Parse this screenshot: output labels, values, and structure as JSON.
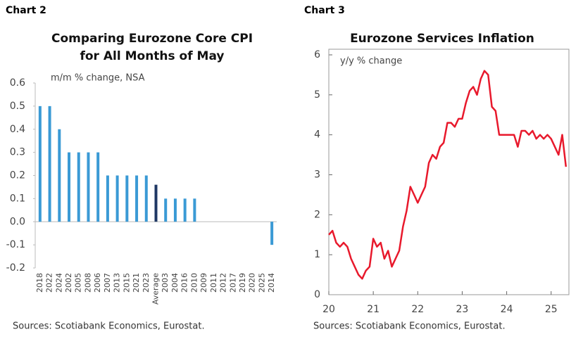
{
  "chart_data": [
    {
      "type": "bar",
      "label": "Chart 2",
      "title": [
        "Comparing Eurozone Core CPI",
        "for All Months of May"
      ],
      "subtitle": "m/m % change, NSA",
      "categories": [
        "2018",
        "2022",
        "2024",
        "2002",
        "2005",
        "2008",
        "2006",
        "2007",
        "2013",
        "2015",
        "2021",
        "2023",
        "Average",
        "2003",
        "2004",
        "2016",
        "2010",
        "2009",
        "2011",
        "2012",
        "2017",
        "2019",
        "2020",
        "2025",
        "2014"
      ],
      "values": [
        0.5,
        0.5,
        0.4,
        0.3,
        0.3,
        0.3,
        0.3,
        0.2,
        0.2,
        0.2,
        0.2,
        0.2,
        0.16,
        0.1,
        0.1,
        0.1,
        0.1,
        0,
        0,
        0,
        0,
        0,
        0,
        0,
        -0.1
      ],
      "colors": [
        "#3a9ad5",
        "#3a9ad5",
        "#3a9ad5",
        "#3a9ad5",
        "#3a9ad5",
        "#3a9ad5",
        "#3a9ad5",
        "#3a9ad5",
        "#3a9ad5",
        "#3a9ad5",
        "#3a9ad5",
        "#3a9ad5",
        "#1f3864",
        "#3a9ad5",
        "#3a9ad5",
        "#3a9ad5",
        "#3a9ad5",
        "#3a9ad5",
        "#3a9ad5",
        "#3a9ad5",
        "#3a9ad5",
        "#3a9ad5",
        "#3a9ad5",
        "#3a9ad5",
        "#3a9ad5"
      ],
      "ylim": [
        -0.2,
        0.6
      ],
      "yticks": [
        0.6,
        0.5,
        0.4,
        0.3,
        0.2,
        0.1,
        {
          "value": 0,
          "label": "0.0"
        },
        -0.1,
        -0.2
      ],
      "source": "Sources: Scotiabank Economics, Eurostat."
    },
    {
      "type": "line",
      "label": "Chart 3",
      "title": [
        "Eurozone Services Inflation"
      ],
      "subtitle": "y/y % change",
      "x": [
        20,
        20.083,
        20.167,
        20.25,
        20.333,
        20.417,
        20.5,
        20.583,
        20.667,
        20.75,
        20.833,
        20.917,
        21,
        21.083,
        21.167,
        21.25,
        21.333,
        21.417,
        21.5,
        21.583,
        21.667,
        21.75,
        21.833,
        21.917,
        22,
        22.083,
        22.167,
        22.25,
        22.333,
        22.417,
        22.5,
        22.583,
        22.667,
        22.75,
        22.833,
        22.917,
        23,
        23.083,
        23.167,
        23.25,
        23.333,
        23.417,
        23.5,
        23.583,
        23.667,
        23.75,
        23.833,
        23.917,
        24,
        24.083,
        24.167,
        24.25,
        24.333,
        24.417,
        24.5,
        24.583,
        24.667,
        24.75,
        24.833,
        24.917,
        25,
        25.083,
        25.167,
        25.25,
        25.333
      ],
      "values": [
        1.5,
        1.6,
        1.3,
        1.2,
        1.3,
        1.2,
        0.9,
        0.7,
        0.5,
        0.4,
        0.6,
        0.7,
        1.4,
        1.2,
        1.3,
        0.9,
        1.1,
        0.7,
        0.9,
        1.1,
        1.7,
        2.1,
        2.7,
        2.5,
        2.3,
        2.5,
        2.7,
        3.3,
        3.5,
        3.4,
        3.7,
        3.8,
        4.3,
        4.3,
        4.2,
        4.4,
        4.4,
        4.8,
        5.1,
        5.2,
        5.0,
        5.4,
        5.6,
        5.5,
        4.7,
        4.6,
        4.0,
        4.0,
        4.0,
        4.0,
        4.0,
        3.7,
        4.1,
        4.1,
        4.0,
        4.1,
        3.9,
        4.0,
        3.9,
        4.0,
        3.9,
        3.7,
        3.5,
        4.0,
        3.2
      ],
      "color": "#e8192c",
      "xlim": [
        20,
        25.4
      ],
      "xticks": [
        20,
        21,
        22,
        23,
        24,
        25
      ],
      "ylim": [
        0,
        6
      ],
      "yticks": [
        6,
        5,
        4,
        3,
        2,
        1,
        0
      ],
      "source": "Sources: Scotiabank Economics, Eurostat."
    }
  ]
}
